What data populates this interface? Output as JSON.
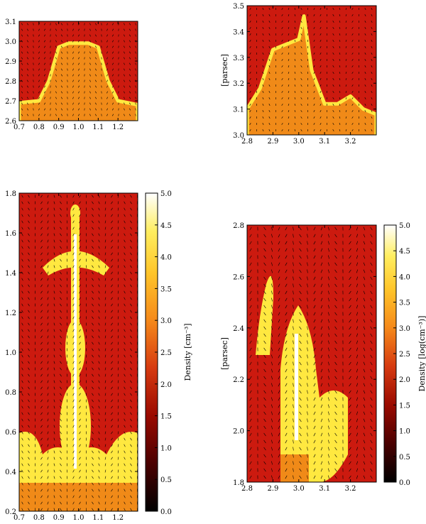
{
  "colors": {
    "background": "#cc1a0f",
    "mid": "#f08a18",
    "high": "#ffe840",
    "peak": "#ffffff",
    "vectors": "#000000"
  },
  "chart_data": [
    {
      "type": "heatmap",
      "panel": "top-left",
      "xlim": [
        0.7,
        1.3
      ],
      "ylim": [
        2.6,
        3.1
      ],
      "xticks": [
        "0.7",
        "0.8",
        "0.9",
        "1.0",
        "1.1",
        "1.2"
      ],
      "yticks": [
        "2.6",
        "2.7",
        "2.8",
        "2.9",
        "3.0",
        "3.1"
      ],
      "ylabel": "",
      "density_front": {
        "x": [
          0.7,
          0.8,
          0.85,
          0.9,
          0.95,
          1.0,
          1.05,
          1.1,
          1.15,
          1.2,
          1.3
        ],
        "y": [
          2.69,
          2.7,
          2.8,
          2.97,
          2.99,
          2.99,
          2.99,
          2.97,
          2.8,
          2.7,
          2.68
        ]
      },
      "vector_field": true
    },
    {
      "type": "heatmap",
      "panel": "top-right",
      "xlim": [
        2.8,
        3.3
      ],
      "ylim": [
        3.0,
        3.5
      ],
      "xticks": [
        "2.8",
        "2.9",
        "3.0",
        "3.1",
        "3.2"
      ],
      "yticks": [
        "3.0",
        "3.1",
        "3.2",
        "3.3",
        "3.4",
        "3.5"
      ],
      "ylabel": "[parsec]",
      "density_front": {
        "x": [
          2.8,
          2.85,
          2.9,
          2.95,
          3.0,
          3.02,
          3.05,
          3.1,
          3.15,
          3.2,
          3.25,
          3.3
        ],
        "y": [
          3.1,
          3.18,
          3.33,
          3.35,
          3.37,
          3.46,
          3.25,
          3.12,
          3.12,
          3.15,
          3.1,
          3.08
        ]
      },
      "vector_field": true
    },
    {
      "type": "heatmap",
      "panel": "bottom-left",
      "xlim": [
        0.7,
        1.3
      ],
      "ylim": [
        0.2,
        1.8
      ],
      "xticks": [
        "0.7",
        "0.8",
        "0.9",
        "1.0",
        "1.1",
        "1.2"
      ],
      "yticks": [
        "0.2",
        "0.4",
        "0.6",
        "0.8",
        "1.0",
        "1.2",
        "1.4",
        "1.6",
        "1.8"
      ],
      "ylabel": "",
      "colorbar": {
        "label": "Density [cm⁻³]",
        "range": [
          0.0,
          5.0
        ],
        "ticks": [
          "0.0",
          "0.5",
          "1.0",
          "1.5",
          "2.0",
          "2.5",
          "3.0",
          "3.5",
          "4.0",
          "4.5",
          "5.0"
        ]
      },
      "structure": "central pillar with cap near y=1.5 and turbulent base below y=0.7",
      "vector_field": true
    },
    {
      "type": "heatmap",
      "panel": "bottom-right",
      "xlim": [
        2.8,
        3.3
      ],
      "ylim": [
        1.8,
        2.8
      ],
      "xticks": [
        "2.8",
        "2.9",
        "3.0",
        "3.1",
        "3.2"
      ],
      "yticks": [
        "1.8",
        "2.0",
        "2.2",
        "2.4",
        "2.6",
        "2.8"
      ],
      "ylabel": "[parsec]",
      "colorbar": {
        "label": "Density [log(cm⁻³)]",
        "range": [
          0.0,
          5.0
        ],
        "ticks": [
          "0.0",
          "0.5",
          "1.0",
          "1.5",
          "2.0",
          "2.5",
          "3.0",
          "3.5",
          "4.0",
          "4.5",
          "5.0"
        ]
      },
      "structure": "irregular dense filaments rising from the bottom",
      "vector_field": true
    }
  ]
}
